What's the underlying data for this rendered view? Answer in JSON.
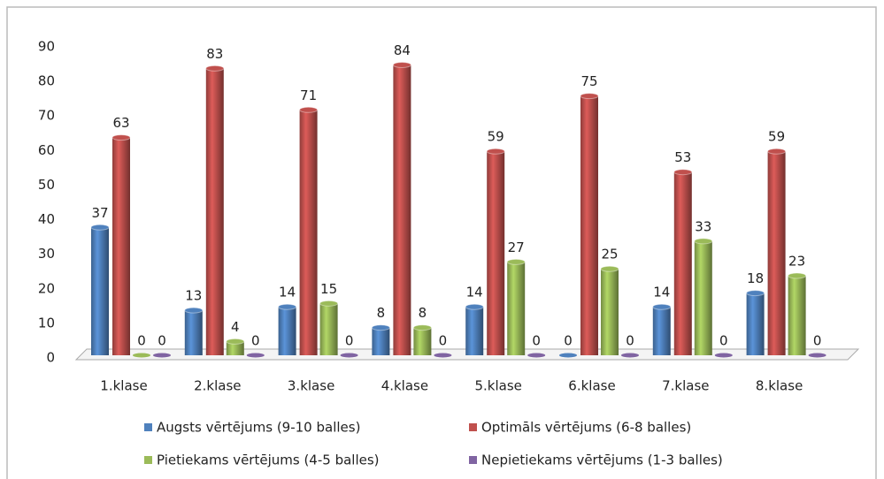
{
  "chart_data": {
    "type": "bar",
    "categories": [
      "1.klase",
      "2.klase",
      "3.klase",
      "4.klase",
      "5.klase",
      "6.klase",
      "7.klase",
      "8.klase"
    ],
    "series": [
      {
        "name": "Augsts vērtējums (9-10 balles)",
        "color": "#4f81bd",
        "values": [
          37,
          13,
          14,
          8,
          14,
          0,
          14,
          18
        ]
      },
      {
        "name": "Optimāls vērtējums (6-8 balles)",
        "color": "#c0504d",
        "values": [
          63,
          83,
          71,
          84,
          59,
          75,
          53,
          59
        ]
      },
      {
        "name": "Pietiekams vērtējums (4-5 balles)",
        "color": "#9bbb59",
        "values": [
          0,
          4,
          15,
          8,
          27,
          25,
          33,
          23
        ]
      },
      {
        "name": "Nepietiekams vērtējums (1-3 balles)",
        "color": "#8064a2",
        "values": [
          0,
          0,
          0,
          0,
          0,
          0,
          0,
          0
        ]
      }
    ],
    "ylim": [
      0,
      90
    ],
    "yticks": [
      0,
      10,
      20,
      30,
      40,
      50,
      60,
      70,
      80,
      90
    ],
    "legend": "bottom"
  }
}
